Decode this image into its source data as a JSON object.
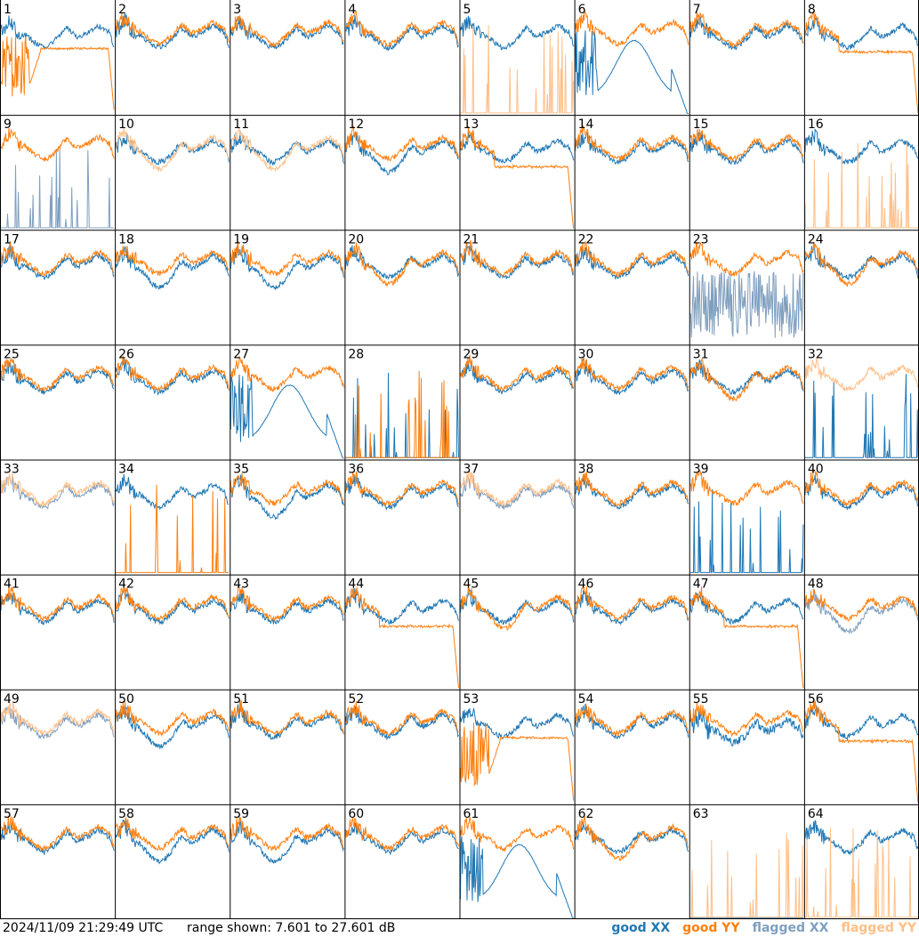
{
  "footer": {
    "timestamp": "2024/11/09 21:29:49 UTC",
    "range_prefix": "range shown:",
    "range_text": "range shown: 7.601 to 27.601 dB"
  },
  "legend": [
    {
      "label": "good XX",
      "color": "#1f77b4"
    },
    {
      "label": "good YY",
      "color": "#ff7f0e"
    },
    {
      "label": "flagged XX",
      "color": "#7f9fbf"
    },
    {
      "label": "flagged YY",
      "color": "#ffbf87"
    }
  ],
  "colors": {
    "good_xx": "#1f77b4",
    "good_yy": "#ff7f0e",
    "flagged_xx": "#7f9fbf",
    "flagged_yy": "#ffbf87"
  },
  "chart_data": {
    "type": "line",
    "grid": {
      "rows": 8,
      "cols": 8
    },
    "ylim": [
      7.601,
      27.601
    ],
    "yunit": "dB",
    "panels": [
      {
        "id": 1,
        "xx": "good",
        "yy": "good",
        "xx_shape": "normal",
        "yy_shape": "drop_flat_cliff"
      },
      {
        "id": 2,
        "xx": "good",
        "yy": "good",
        "xx_shape": "normal",
        "yy_shape": "normal"
      },
      {
        "id": 3,
        "xx": "good",
        "yy": "good",
        "xx_shape": "normal",
        "yy_shape": "normal"
      },
      {
        "id": 4,
        "xx": "good",
        "yy": "good",
        "xx_shape": "normal",
        "yy_shape": "normal"
      },
      {
        "id": 5,
        "xx": "good",
        "yy": "flagged",
        "xx_shape": "normal",
        "yy_shape": "spikes"
      },
      {
        "id": 6,
        "xx": "good",
        "yy": "good",
        "xx_shape": "bump_cliff",
        "yy_shape": "normal"
      },
      {
        "id": 7,
        "xx": "good",
        "yy": "good",
        "xx_shape": "normal",
        "yy_shape": "normal"
      },
      {
        "id": 8,
        "xx": "good",
        "yy": "good",
        "xx_shape": "normal",
        "yy_shape": "flat_cliff"
      },
      {
        "id": 9,
        "xx": "flagged",
        "yy": "good",
        "xx_shape": "spikes",
        "yy_shape": "normal"
      },
      {
        "id": 10,
        "xx": "good",
        "yy": "flagged",
        "xx_shape": "normal",
        "yy_shape": "low"
      },
      {
        "id": 11,
        "xx": "good",
        "yy": "flagged",
        "xx_shape": "normal",
        "yy_shape": "low"
      },
      {
        "id": 12,
        "xx": "good",
        "yy": "good",
        "xx_shape": "low",
        "yy_shape": "normal"
      },
      {
        "id": 13,
        "xx": "good",
        "yy": "good",
        "xx_shape": "normal",
        "yy_shape": "flat_cliff"
      },
      {
        "id": 14,
        "xx": "good",
        "yy": "good",
        "xx_shape": "normal",
        "yy_shape": "normal"
      },
      {
        "id": 15,
        "xx": "good",
        "yy": "good",
        "xx_shape": "normal",
        "yy_shape": "normal"
      },
      {
        "id": 16,
        "xx": "good",
        "yy": "flagged",
        "xx_shape": "normal",
        "yy_shape": "spikes"
      },
      {
        "id": 17,
        "xx": "good",
        "yy": "good",
        "xx_shape": "normal",
        "yy_shape": "normal"
      },
      {
        "id": 18,
        "xx": "good",
        "yy": "good",
        "xx_shape": "low",
        "yy_shape": "normal"
      },
      {
        "id": 19,
        "xx": "good",
        "yy": "good",
        "xx_shape": "low",
        "yy_shape": "normal"
      },
      {
        "id": 20,
        "xx": "good",
        "yy": "good",
        "xx_shape": "normal",
        "yy_shape": "low"
      },
      {
        "id": 21,
        "xx": "good",
        "yy": "good",
        "xx_shape": "normal",
        "yy_shape": "normal"
      },
      {
        "id": 22,
        "xx": "good",
        "yy": "good",
        "xx_shape": "normal",
        "yy_shape": "normal"
      },
      {
        "id": 23,
        "xx": "flagged",
        "yy": "good",
        "xx_shape": "noisy",
        "yy_shape": "normal"
      },
      {
        "id": 24,
        "xx": "good",
        "yy": "good",
        "xx_shape": "normal",
        "yy_shape": "low"
      },
      {
        "id": 25,
        "xx": "good",
        "yy": "good",
        "xx_shape": "normal",
        "yy_shape": "normal"
      },
      {
        "id": 26,
        "xx": "good",
        "yy": "good",
        "xx_shape": "normal",
        "yy_shape": "normal"
      },
      {
        "id": 27,
        "xx": "good",
        "yy": "good",
        "xx_shape": "bump_cliff",
        "yy_shape": "normal"
      },
      {
        "id": 28,
        "xx": "good",
        "yy": "good",
        "xx_shape": "spikes",
        "yy_shape": "spikes"
      },
      {
        "id": 29,
        "xx": "good",
        "yy": "good",
        "xx_shape": "normal",
        "yy_shape": "normal"
      },
      {
        "id": 30,
        "xx": "good",
        "yy": "good",
        "xx_shape": "normal",
        "yy_shape": "normal"
      },
      {
        "id": 31,
        "xx": "good",
        "yy": "good",
        "xx_shape": "normal",
        "yy_shape": "low"
      },
      {
        "id": 32,
        "xx": "good",
        "yy": "flagged",
        "xx_shape": "spikes",
        "yy_shape": "normal"
      },
      {
        "id": 33,
        "xx": "flagged",
        "yy": "flagged",
        "xx_shape": "normal",
        "yy_shape": "normal"
      },
      {
        "id": 34,
        "xx": "good",
        "yy": "good",
        "xx_shape": "normal",
        "yy_shape": "spikes"
      },
      {
        "id": 35,
        "xx": "good",
        "yy": "good",
        "xx_shape": "low",
        "yy_shape": "normal"
      },
      {
        "id": 36,
        "xx": "good",
        "yy": "good",
        "xx_shape": "normal",
        "yy_shape": "normal"
      },
      {
        "id": 37,
        "xx": "flagged",
        "yy": "flagged",
        "xx_shape": "normal",
        "yy_shape": "normal"
      },
      {
        "id": 38,
        "xx": "good",
        "yy": "good",
        "xx_shape": "normal",
        "yy_shape": "normal"
      },
      {
        "id": 39,
        "xx": "good",
        "yy": "good",
        "xx_shape": "spikes",
        "yy_shape": "normal"
      },
      {
        "id": 40,
        "xx": "good",
        "yy": "good",
        "xx_shape": "normal",
        "yy_shape": "normal"
      },
      {
        "id": 41,
        "xx": "good",
        "yy": "good",
        "xx_shape": "normal",
        "yy_shape": "normal"
      },
      {
        "id": 42,
        "xx": "good",
        "yy": "good",
        "xx_shape": "normal",
        "yy_shape": "normal"
      },
      {
        "id": 43,
        "xx": "good",
        "yy": "good",
        "xx_shape": "normal",
        "yy_shape": "normal"
      },
      {
        "id": 44,
        "xx": "good",
        "yy": "good",
        "xx_shape": "normal",
        "yy_shape": "flat_cliff"
      },
      {
        "id": 45,
        "xx": "good",
        "yy": "good",
        "xx_shape": "normal",
        "yy_shape": "low"
      },
      {
        "id": 46,
        "xx": "good",
        "yy": "good",
        "xx_shape": "normal",
        "yy_shape": "normal"
      },
      {
        "id": 47,
        "xx": "good",
        "yy": "good",
        "xx_shape": "normal",
        "yy_shape": "flat_cliff"
      },
      {
        "id": 48,
        "xx": "flagged",
        "yy": "good",
        "xx_shape": "low",
        "yy_shape": "normal"
      },
      {
        "id": 49,
        "xx": "flagged",
        "yy": "flagged",
        "xx_shape": "normal",
        "yy_shape": "normal"
      },
      {
        "id": 50,
        "xx": "good",
        "yy": "good",
        "xx_shape": "low",
        "yy_shape": "normal"
      },
      {
        "id": 51,
        "xx": "good",
        "yy": "good",
        "xx_shape": "normal",
        "yy_shape": "normal"
      },
      {
        "id": 52,
        "xx": "good",
        "yy": "good",
        "xx_shape": "normal",
        "yy_shape": "normal"
      },
      {
        "id": 53,
        "xx": "good",
        "yy": "good",
        "xx_shape": "normal",
        "yy_shape": "drop_flat_cliff"
      },
      {
        "id": 54,
        "xx": "good",
        "yy": "good",
        "xx_shape": "normal",
        "yy_shape": "normal"
      },
      {
        "id": 55,
        "xx": "good",
        "yy": "good",
        "xx_shape": "noisy_low",
        "yy_shape": "normal"
      },
      {
        "id": 56,
        "xx": "good",
        "yy": "good",
        "xx_shape": "normal",
        "yy_shape": "flat_cliff"
      },
      {
        "id": 57,
        "xx": "good",
        "yy": "good",
        "xx_shape": "normal",
        "yy_shape": "normal"
      },
      {
        "id": 58,
        "xx": "good",
        "yy": "good",
        "xx_shape": "low",
        "yy_shape": "normal"
      },
      {
        "id": 59,
        "xx": "good",
        "yy": "good",
        "xx_shape": "low",
        "yy_shape": "normal"
      },
      {
        "id": 60,
        "xx": "good",
        "yy": "good",
        "xx_shape": "normal",
        "yy_shape": "normal"
      },
      {
        "id": 61,
        "xx": "good",
        "yy": "good",
        "xx_shape": "bump_cliff",
        "yy_shape": "normal"
      },
      {
        "id": 62,
        "xx": "good",
        "yy": "good",
        "xx_shape": "normal",
        "yy_shape": "low"
      },
      {
        "id": 63,
        "xx": "good",
        "yy": "flagged",
        "xx_shape": "none",
        "yy_shape": "spikes"
      },
      {
        "id": 64,
        "xx": "good",
        "yy": "flagged",
        "xx_shape": "normal",
        "yy_shape": "spikes"
      }
    ]
  }
}
